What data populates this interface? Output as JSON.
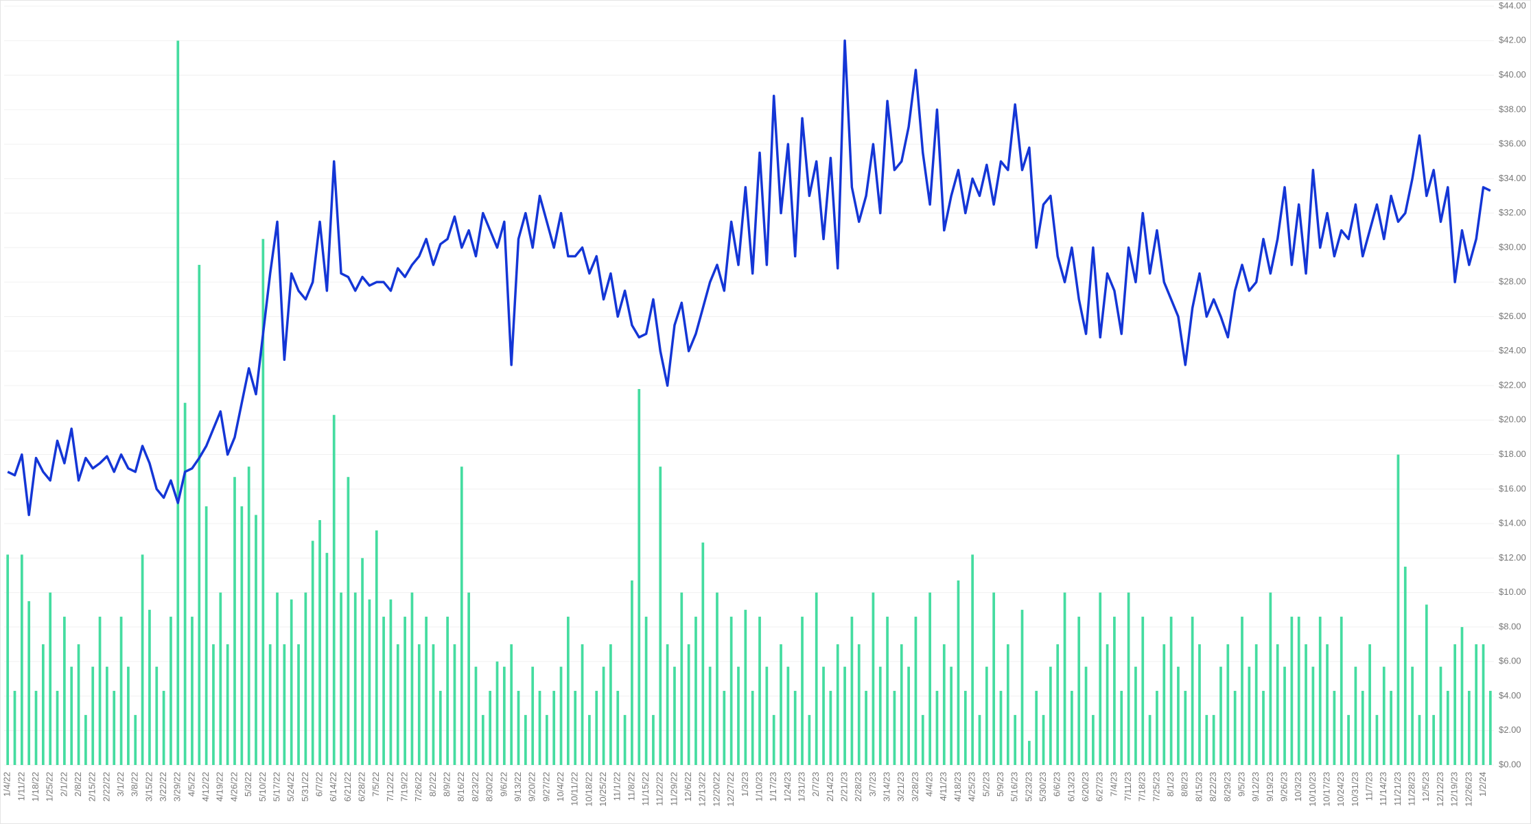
{
  "chart_data": {
    "type": "combo",
    "categories": [
      "1/4/22",
      null,
      "1/11/22",
      null,
      "1/18/22",
      null,
      "1/25/22",
      null,
      "2/1/22",
      null,
      "2/8/22",
      null,
      "2/15/22",
      null,
      "2/22/22",
      null,
      "3/1/22",
      null,
      "3/8/22",
      null,
      "3/15/22",
      null,
      "3/22/22",
      null,
      "3/29/22",
      null,
      "4/5/22",
      null,
      "4/12/22",
      null,
      "4/19/22",
      null,
      "4/26/22",
      null,
      "5/3/22",
      null,
      "5/10/22",
      null,
      "5/17/22",
      null,
      "5/24/22",
      null,
      "5/31/22",
      null,
      "6/7/22",
      null,
      "6/14/22",
      null,
      "6/21/22",
      null,
      "6/28/22",
      null,
      "7/5/22",
      null,
      "7/12/22",
      null,
      "7/19/22",
      null,
      "7/26/22",
      null,
      "8/2/22",
      null,
      "8/9/22",
      null,
      "8/16/22",
      null,
      "8/23/22",
      null,
      "8/30/22",
      null,
      "9/6/22",
      null,
      "9/13/22",
      null,
      "9/20/22",
      null,
      "9/27/22",
      null,
      "10/4/22",
      null,
      "10/11/22",
      null,
      "10/18/22",
      null,
      "10/25/22",
      null,
      "11/1/22",
      null,
      "11/8/22",
      null,
      "11/15/22",
      null,
      "11/22/22",
      null,
      "11/29/22",
      null,
      "12/6/22",
      null,
      "12/13/22",
      null,
      "12/20/22",
      null,
      "12/27/22",
      null,
      "1/3/23",
      null,
      "1/10/23",
      null,
      "1/17/23",
      null,
      "1/24/23",
      null,
      "1/31/23",
      null,
      "2/7/23",
      null,
      "2/14/23",
      null,
      "2/21/23",
      null,
      "2/28/23",
      null,
      "3/7/23",
      null,
      "3/14/23",
      null,
      "3/21/23",
      null,
      "3/28/23",
      null,
      "4/4/23",
      null,
      "4/11/23",
      null,
      "4/18/23",
      null,
      "4/25/23",
      null,
      "5/2/23",
      null,
      "5/9/23",
      null,
      "5/16/23",
      null,
      "5/23/23",
      null,
      "5/30/23",
      null,
      "6/6/23",
      null,
      "6/13/23",
      null,
      "6/20/23",
      null,
      "6/27/23",
      null,
      "7/4/23",
      null,
      "7/11/23",
      null,
      "7/18/23",
      null,
      "7/25/23",
      null,
      "8/1/23",
      null,
      "8/8/23",
      null,
      "8/15/23",
      null,
      "8/22/23",
      null,
      "8/29/23",
      null,
      "9/5/23",
      null,
      "9/12/23",
      null,
      "9/19/23",
      null,
      "9/26/23",
      null,
      "10/3/23",
      null,
      "10/10/23",
      null,
      "10/17/23",
      null,
      "10/24/23",
      null,
      "10/31/23",
      null,
      "11/7/23",
      null,
      "11/14/23",
      null,
      "11/21/23",
      null,
      "11/28/23",
      null,
      "12/5/23",
      null,
      "12/12/23",
      null,
      "12/19/23",
      null,
      "12/26/23",
      null,
      "1/2/24",
      null
    ],
    "series": [
      {
        "type": "bar",
        "color": "#45dca0",
        "values": [
          12.2,
          4.3,
          12.2,
          9.5,
          4.3,
          7.0,
          10.0,
          4.3,
          8.6,
          5.7,
          7.0,
          2.9,
          5.7,
          8.6,
          5.7,
          4.3,
          8.6,
          5.7,
          2.9,
          12.2,
          9.0,
          5.7,
          4.3,
          8.6,
          42.0,
          21.0,
          8.6,
          29.0,
          15.0,
          7.0,
          10.0,
          7.0,
          16.7,
          15.0,
          17.3,
          14.5,
          30.5,
          7.0,
          10.0,
          7.0,
          9.6,
          7.0,
          10.0,
          13.0,
          14.2,
          12.3,
          20.3,
          10.0,
          16.7,
          10.0,
          12.0,
          9.6,
          13.6,
          8.6,
          9.6,
          7.0,
          8.6,
          10.0,
          7.0,
          8.6,
          7.0,
          4.3,
          8.6,
          7.0,
          17.3,
          10.0,
          5.7,
          2.9,
          4.3,
          6.0,
          5.7,
          7.0,
          4.3,
          2.9,
          5.7,
          4.3,
          2.9,
          4.3,
          5.7,
          8.6,
          4.3,
          7.0,
          2.9,
          4.3,
          5.7,
          7.0,
          4.3,
          2.9,
          10.7,
          21.8,
          8.6,
          2.9,
          17.3,
          7.0,
          5.7,
          10.0,
          7.0,
          8.6,
          12.9,
          5.7,
          10.0,
          4.3,
          8.6,
          5.7,
          9.0,
          4.3,
          8.6,
          5.7,
          2.9,
          7.0,
          5.7,
          4.3,
          8.6,
          2.9,
          10.0,
          5.7,
          4.3,
          7.0,
          5.7,
          8.6,
          7.0,
          4.3,
          10.0,
          5.7,
          8.6,
          4.3,
          7.0,
          5.7,
          8.6,
          2.9,
          10.0,
          4.3,
          7.0,
          5.7,
          10.7,
          4.3,
          12.2,
          2.9,
          5.7,
          10.0,
          4.3,
          7.0,
          2.9,
          9.0,
          1.4,
          4.3,
          2.9,
          5.7,
          7.0,
          10.0,
          4.3,
          8.6,
          5.7,
          2.9,
          10.0,
          7.0,
          8.6,
          4.3,
          10.0,
          5.7,
          8.6,
          2.9,
          4.3,
          7.0,
          8.6,
          5.7,
          4.3,
          8.6,
          7.0,
          2.9,
          2.9,
          5.7,
          7.0,
          4.3,
          8.6,
          5.7,
          7.0,
          4.3,
          10.0,
          7.0,
          5.7,
          8.6,
          8.6,
          7.0,
          5.7,
          8.6,
          7.0,
          4.3,
          8.6,
          2.9,
          5.7,
          4.3,
          7.0,
          2.9,
          5.7,
          4.3,
          18.0,
          11.5,
          5.7,
          2.9,
          9.3,
          2.9,
          5.7,
          4.3,
          7.0,
          8.0,
          4.3,
          7.0,
          7.0,
          4.3
        ]
      },
      {
        "type": "line",
        "color": "#1436d6",
        "values": [
          17.0,
          16.8,
          18.0,
          14.5,
          17.8,
          17.0,
          16.5,
          18.8,
          17.5,
          19.5,
          16.5,
          17.8,
          17.2,
          17.5,
          17.9,
          17.0,
          18.0,
          17.2,
          17.0,
          18.5,
          17.5,
          16.0,
          15.5,
          16.5,
          15.2,
          17.0,
          17.2,
          17.8,
          18.5,
          19.5,
          20.5,
          18.0,
          19.0,
          21.0,
          23.0,
          21.5,
          25.0,
          28.5,
          31.5,
          23.5,
          28.5,
          27.5,
          27.0,
          28.0,
          31.5,
          27.5,
          35.0,
          28.5,
          28.3,
          27.5,
          28.3,
          27.8,
          28.0,
          28.0,
          27.5,
          28.8,
          28.3,
          29.0,
          29.5,
          30.5,
          29.0,
          30.2,
          30.5,
          31.8,
          30.0,
          31.0,
          29.5,
          32.0,
          31.0,
          30.0,
          31.5,
          23.2,
          30.5,
          32.0,
          30.0,
          33.0,
          31.5,
          30.0,
          32.0,
          29.5,
          29.5,
          30.0,
          28.5,
          29.5,
          27.0,
          28.5,
          26.0,
          27.5,
          25.5,
          24.8,
          25.0,
          27.0,
          24.0,
          22.0,
          25.5,
          26.8,
          24.0,
          25.0,
          26.5,
          28.0,
          29.0,
          27.5,
          31.5,
          29.0,
          33.5,
          28.5,
          35.5,
          29.0,
          38.8,
          32.0,
          36.0,
          29.5,
          37.5,
          33.0,
          35.0,
          30.5,
          35.2,
          28.8,
          42.0,
          33.5,
          31.5,
          33.0,
          36.0,
          32.0,
          38.5,
          34.5,
          35.0,
          37.0,
          40.3,
          35.5,
          32.5,
          38.0,
          31.0,
          33.0,
          34.5,
          32.0,
          34.0,
          33.0,
          34.8,
          32.5,
          35.0,
          34.5,
          38.3,
          34.5,
          35.8,
          30.0,
          32.5,
          33.0,
          29.5,
          28.0,
          30.0,
          27.0,
          25.0,
          30.0,
          24.8,
          28.5,
          27.5,
          25.0,
          30.0,
          28.0,
          32.0,
          28.5,
          31.0,
          28.0,
          27.0,
          26.0,
          23.2,
          26.5,
          28.5,
          26.0,
          27.0,
          26.0,
          24.8,
          27.5,
          29.0,
          27.5,
          28.0,
          30.5,
          28.5,
          30.5,
          33.5,
          29.0,
          32.5,
          28.5,
          34.5,
          30.0,
          32.0,
          29.5,
          31.0,
          30.5,
          32.5,
          29.5,
          31.0,
          32.5,
          30.5,
          33.0,
          31.5,
          32.0,
          34.0,
          36.5,
          33.0,
          34.5,
          31.5,
          33.5,
          28.0,
          31.0,
          29.0,
          30.5,
          33.5,
          33.3
        ]
      }
    ],
    "ylim": [
      0,
      44
    ],
    "yticks": [
      {
        "value": 0,
        "label": "$0.00"
      },
      {
        "value": 2,
        "label": "$2.00"
      },
      {
        "value": 4,
        "label": "$4.00"
      },
      {
        "value": 6,
        "label": "$6.00"
      },
      {
        "value": 8,
        "label": "$8.00"
      },
      {
        "value": 10,
        "label": "$10.00"
      },
      {
        "value": 12,
        "label": "$12.00"
      },
      {
        "value": 14,
        "label": "$14.00"
      },
      {
        "value": 16,
        "label": "$16.00"
      },
      {
        "value": 18,
        "label": "$18.00"
      },
      {
        "value": 20,
        "label": "$20.00"
      },
      {
        "value": 22,
        "label": "$22.00"
      },
      {
        "value": 24,
        "label": "$24.00"
      },
      {
        "value": 26,
        "label": "$26.00"
      },
      {
        "value": 28,
        "label": "$28.00"
      },
      {
        "value": 30,
        "label": "$30.00"
      },
      {
        "value": 32,
        "label": "$32.00"
      },
      {
        "value": 34,
        "label": "$34.00"
      },
      {
        "value": 36,
        "label": "$36.00"
      },
      {
        "value": 38,
        "label": "$38.00"
      },
      {
        "value": 40,
        "label": "$40.00"
      },
      {
        "value": 42,
        "label": "$42.00"
      },
      {
        "value": 44,
        "label": "$44.00"
      }
    ],
    "grid": true
  }
}
